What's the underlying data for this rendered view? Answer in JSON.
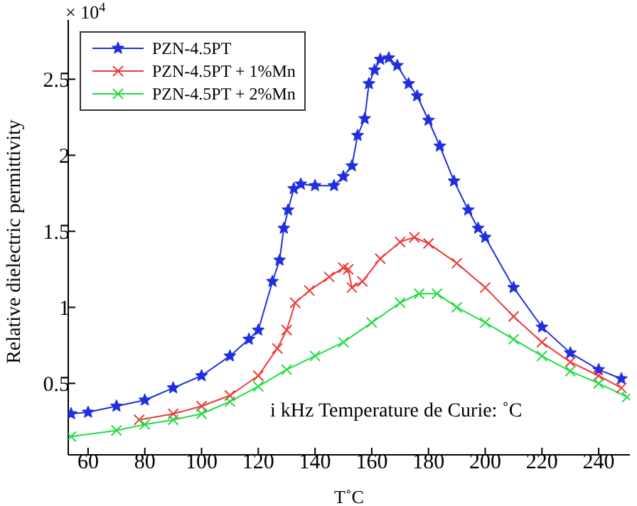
{
  "chart_data": {
    "type": "line",
    "xlabel": "T˚C",
    "ylabel": "Relative dielectric permittivity",
    "annotations": [
      "× 10$^{4}$",
      "i kHz Temperature de Curie: ˚C"
    ],
    "xlim": [
      53,
      251
    ],
    "xticks": [
      60,
      80,
      100,
      120,
      140,
      160,
      180,
      200,
      220,
      240
    ],
    "ylim": [
      0.03,
      2.89
    ],
    "yticks": [
      0.5,
      1,
      1.5,
      2,
      2.5
    ],
    "grid": false,
    "legend": "top left",
    "line_style": "solid",
    "series": [
      {
        "name": "PZN-4.5PT",
        "color": "#1f2fe0",
        "marker": "star",
        "x": [
          54,
          60,
          70,
          80,
          90,
          100,
          110,
          116.7,
          120,
          125,
          127.5,
          129,
          130.5,
          132.5,
          135,
          140,
          146.7,
          150,
          153,
          155,
          157.5,
          159,
          161,
          163,
          166,
          169,
          173,
          176,
          180,
          184,
          189,
          194,
          197.5,
          200,
          210,
          220,
          230,
          240,
          248
        ],
        "values": [
          0.3,
          0.31,
          0.35,
          0.39,
          0.47,
          0.55,
          0.68,
          0.79,
          0.85,
          1.17,
          1.31,
          1.52,
          1.64,
          1.78,
          1.81,
          1.8,
          1.8,
          1.86,
          1.93,
          2.13,
          2.24,
          2.47,
          2.56,
          2.63,
          2.64,
          2.59,
          2.47,
          2.39,
          2.23,
          2.06,
          1.83,
          1.64,
          1.52,
          1.46,
          1.13,
          0.87,
          0.7,
          0.59,
          0.53
        ]
      },
      {
        "name": "PZN-4.5PT + 1%Mn",
        "color": "#ee3a3a",
        "marker": "cross",
        "x": [
          78,
          90,
          100,
          110,
          120,
          126.7,
          130,
          133,
          138,
          145,
          150,
          151.7,
          153,
          156.7,
          163,
          170,
          175,
          180,
          190,
          200,
          210,
          220,
          230,
          240,
          248
        ],
        "values": [
          0.26,
          0.3,
          0.35,
          0.42,
          0.55,
          0.73,
          0.85,
          1.03,
          1.11,
          1.2,
          1.26,
          1.25,
          1.13,
          1.17,
          1.32,
          1.43,
          1.46,
          1.42,
          1.29,
          1.13,
          0.94,
          0.77,
          0.64,
          0.55,
          0.47
        ]
      },
      {
        "name": "PZN-4.5PT + 2%Mn",
        "color": "#22dd44",
        "marker": "cross",
        "x": [
          54,
          70,
          80,
          90,
          100,
          110,
          120,
          130,
          140,
          150,
          160,
          170,
          176.7,
          183,
          190,
          200,
          210,
          220,
          230,
          240,
          250
        ],
        "values": [
          0.15,
          0.19,
          0.23,
          0.26,
          0.3,
          0.38,
          0.48,
          0.59,
          0.68,
          0.77,
          0.9,
          1.03,
          1.09,
          1.09,
          1.0,
          0.9,
          0.79,
          0.68,
          0.58,
          0.5,
          0.41
        ]
      }
    ]
  }
}
